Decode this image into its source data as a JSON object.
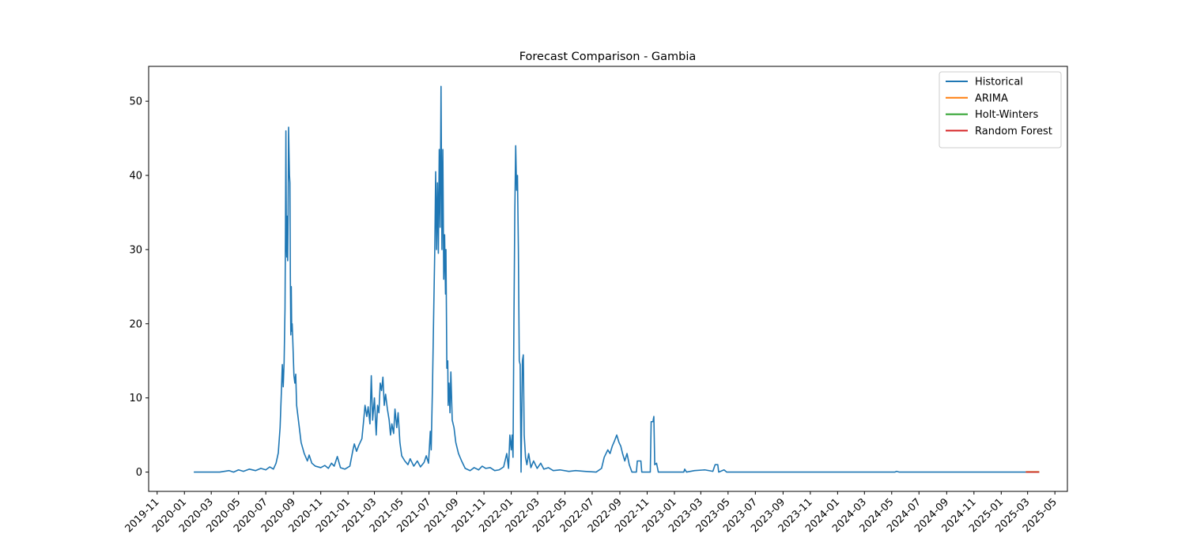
{
  "chart_data": {
    "type": "line",
    "title": "Forecast Comparison - Gambia",
    "xlabel": "",
    "ylabel": "",
    "xlim": [
      "2019-10-13",
      "2025-05-29"
    ],
    "ylim": [
      -2.6,
      54.7
    ],
    "y_ticks": [
      0,
      10,
      20,
      30,
      40,
      50
    ],
    "x_ticks": [
      "2019-11",
      "2020-01",
      "2020-03",
      "2020-05",
      "2020-07",
      "2020-09",
      "2020-11",
      "2021-01",
      "2021-03",
      "2021-05",
      "2021-07",
      "2021-09",
      "2021-11",
      "2022-01",
      "2022-03",
      "2022-05",
      "2022-07",
      "2022-09",
      "2022-11",
      "2023-01",
      "2023-03",
      "2023-05",
      "2023-07",
      "2023-09",
      "2023-11",
      "2024-01",
      "2024-03",
      "2024-05",
      "2024-07",
      "2024-09",
      "2024-11",
      "2025-01",
      "2025-03",
      "2025-05"
    ],
    "grid": false,
    "legend_position": "top-right",
    "series": [
      {
        "name": "Historical",
        "color": "#1f77b4",
        "points": [
          [
            "2020-01-22",
            0
          ],
          [
            "2020-03-20",
            0
          ],
          [
            "2020-04-10",
            0.2
          ],
          [
            "2020-04-20",
            0
          ],
          [
            "2020-05-01",
            0.3
          ],
          [
            "2020-05-12",
            0.1
          ],
          [
            "2020-05-25",
            0.4
          ],
          [
            "2020-06-08",
            0.2
          ],
          [
            "2020-06-20",
            0.5
          ],
          [
            "2020-07-01",
            0.3
          ],
          [
            "2020-07-10",
            0.7
          ],
          [
            "2020-07-18",
            0.4
          ],
          [
            "2020-07-24",
            1.2
          ],
          [
            "2020-07-29",
            2.6
          ],
          [
            "2020-08-02",
            6
          ],
          [
            "2020-08-05",
            11
          ],
          [
            "2020-08-07",
            14.5
          ],
          [
            "2020-08-09",
            11.5
          ],
          [
            "2020-08-11",
            14.8
          ],
          [
            "2020-08-13",
            22
          ],
          [
            "2020-08-14",
            32
          ],
          [
            "2020-08-15",
            46
          ],
          [
            "2020-08-16",
            31
          ],
          [
            "2020-08-17",
            29
          ],
          [
            "2020-08-18",
            34.5
          ],
          [
            "2020-08-19",
            28.5
          ],
          [
            "2020-08-20",
            35
          ],
          [
            "2020-08-21",
            46.5
          ],
          [
            "2020-08-22",
            43
          ],
          [
            "2020-08-23",
            40
          ],
          [
            "2020-08-24",
            39
          ],
          [
            "2020-08-25",
            26
          ],
          [
            "2020-08-26",
            18.5
          ],
          [
            "2020-08-27",
            25
          ],
          [
            "2020-08-28",
            19
          ],
          [
            "2020-08-29",
            20
          ],
          [
            "2020-08-30",
            18.5
          ],
          [
            "2020-09-02",
            13
          ],
          [
            "2020-09-04",
            12
          ],
          [
            "2020-09-06",
            13.2
          ],
          [
            "2020-09-08",
            9
          ],
          [
            "2020-09-12",
            7
          ],
          [
            "2020-09-18",
            4
          ],
          [
            "2020-09-25",
            2.5
          ],
          [
            "2020-10-02",
            1.5
          ],
          [
            "2020-10-06",
            2.3
          ],
          [
            "2020-10-12",
            1.2
          ],
          [
            "2020-10-20",
            0.8
          ],
          [
            "2020-11-01",
            0.6
          ],
          [
            "2020-11-10",
            0.9
          ],
          [
            "2020-11-18",
            0.5
          ],
          [
            "2020-11-25",
            1.2
          ],
          [
            "2020-12-01",
            0.8
          ],
          [
            "2020-12-08",
            2.1
          ],
          [
            "2020-12-15",
            0.6
          ],
          [
            "2020-12-25",
            0.4
          ],
          [
            "2021-01-05",
            0.8
          ],
          [
            "2021-01-12",
            3
          ],
          [
            "2021-01-15",
            3.8
          ],
          [
            "2021-01-20",
            2.8
          ],
          [
            "2021-01-25",
            3.6
          ],
          [
            "2021-02-01",
            4.5
          ],
          [
            "2021-02-05",
            7
          ],
          [
            "2021-02-08",
            9
          ],
          [
            "2021-02-12",
            7.5
          ],
          [
            "2021-02-15",
            8.8
          ],
          [
            "2021-02-19",
            6.5
          ],
          [
            "2021-02-22",
            13
          ],
          [
            "2021-02-25",
            7
          ],
          [
            "2021-03-01",
            10
          ],
          [
            "2021-03-05",
            5
          ],
          [
            "2021-03-08",
            9
          ],
          [
            "2021-03-11",
            8
          ],
          [
            "2021-03-14",
            12
          ],
          [
            "2021-03-17",
            11
          ],
          [
            "2021-03-20",
            12.8
          ],
          [
            "2021-03-23",
            9
          ],
          [
            "2021-03-26",
            10.5
          ],
          [
            "2021-03-30",
            8.5
          ],
          [
            "2021-04-03",
            7
          ],
          [
            "2021-04-06",
            5
          ],
          [
            "2021-04-09",
            6.5
          ],
          [
            "2021-04-13",
            5.2
          ],
          [
            "2021-04-16",
            8.5
          ],
          [
            "2021-04-20",
            6
          ],
          [
            "2021-04-23",
            8
          ],
          [
            "2021-04-27",
            4
          ],
          [
            "2021-05-01",
            2.2
          ],
          [
            "2021-05-08",
            1.5
          ],
          [
            "2021-05-15",
            1
          ],
          [
            "2021-05-20",
            1.8
          ],
          [
            "2021-05-28",
            0.8
          ],
          [
            "2021-06-05",
            1.5
          ],
          [
            "2021-06-12",
            0.7
          ],
          [
            "2021-06-20",
            1.3
          ],
          [
            "2021-06-25",
            2.2
          ],
          [
            "2021-06-30",
            1.2
          ],
          [
            "2021-07-04",
            5.5
          ],
          [
            "2021-07-06",
            3
          ],
          [
            "2021-07-09",
            12
          ],
          [
            "2021-07-12",
            23
          ],
          [
            "2021-07-14",
            30
          ],
          [
            "2021-07-16",
            40.5
          ],
          [
            "2021-07-18",
            30
          ],
          [
            "2021-07-20",
            39
          ],
          [
            "2021-07-22",
            29.5
          ],
          [
            "2021-07-24",
            43.5
          ],
          [
            "2021-07-26",
            33
          ],
          [
            "2021-07-28",
            52
          ],
          [
            "2021-07-30",
            30
          ],
          [
            "2021-08-01",
            43.5
          ],
          [
            "2021-08-03",
            26
          ],
          [
            "2021-08-05",
            32
          ],
          [
            "2021-08-07",
            24
          ],
          [
            "2021-08-08",
            30
          ],
          [
            "2021-08-10",
            14
          ],
          [
            "2021-08-12",
            15
          ],
          [
            "2021-08-13",
            9
          ],
          [
            "2021-08-15",
            12
          ],
          [
            "2021-08-17",
            8
          ],
          [
            "2021-08-19",
            13.5
          ],
          [
            "2021-08-22",
            7
          ],
          [
            "2021-08-26",
            6
          ],
          [
            "2021-08-30",
            4
          ],
          [
            "2021-09-05",
            2.5
          ],
          [
            "2021-09-12",
            1.5
          ],
          [
            "2021-09-20",
            0.5
          ],
          [
            "2021-10-01",
            0.2
          ],
          [
            "2021-10-10",
            0.6
          ],
          [
            "2021-10-20",
            0.3
          ],
          [
            "2021-10-28",
            0.8
          ],
          [
            "2021-11-05",
            0.5
          ],
          [
            "2021-11-15",
            0.6
          ],
          [
            "2021-11-25",
            0.2
          ],
          [
            "2021-12-05",
            0.3
          ],
          [
            "2021-12-15",
            0.7
          ],
          [
            "2021-12-22",
            2.5
          ],
          [
            "2021-12-26",
            0.5
          ],
          [
            "2021-12-29",
            5
          ],
          [
            "2022-01-01",
            3
          ],
          [
            "2022-01-03",
            5
          ],
          [
            "2022-01-05",
            2
          ],
          [
            "2022-01-07",
            20
          ],
          [
            "2022-01-09",
            35
          ],
          [
            "2022-01-11",
            44
          ],
          [
            "2022-01-13",
            38
          ],
          [
            "2022-01-15",
            40
          ],
          [
            "2022-01-17",
            30
          ],
          [
            "2022-01-19",
            15
          ],
          [
            "2022-01-21",
            14.5
          ],
          [
            "2022-01-23",
            0
          ],
          [
            "2022-01-26",
            15
          ],
          [
            "2022-01-28",
            15.8
          ],
          [
            "2022-01-30",
            5
          ],
          [
            "2022-02-02",
            2
          ],
          [
            "2022-02-05",
            1
          ],
          [
            "2022-02-09",
            2.5
          ],
          [
            "2022-02-14",
            0.6
          ],
          [
            "2022-02-20",
            1.5
          ],
          [
            "2022-02-28",
            0.5
          ],
          [
            "2022-03-08",
            1.2
          ],
          [
            "2022-03-15",
            0.4
          ],
          [
            "2022-03-25",
            0.6
          ],
          [
            "2022-04-05",
            0.2
          ],
          [
            "2022-04-20",
            0.3
          ],
          [
            "2022-05-10",
            0.1
          ],
          [
            "2022-05-25",
            0.2
          ],
          [
            "2022-06-15",
            0.1
          ],
          [
            "2022-07-10",
            0
          ],
          [
            "2022-07-22",
            0.5
          ],
          [
            "2022-07-28",
            2
          ],
          [
            "2022-08-05",
            3
          ],
          [
            "2022-08-10",
            2.5
          ],
          [
            "2022-08-15",
            3.5
          ],
          [
            "2022-08-20",
            4.2
          ],
          [
            "2022-08-25",
            5
          ],
          [
            "2022-08-30",
            4
          ],
          [
            "2022-09-03",
            3.5
          ],
          [
            "2022-09-07",
            2.5
          ],
          [
            "2022-09-12",
            1.5
          ],
          [
            "2022-09-17",
            2.5
          ],
          [
            "2022-09-22",
            1
          ],
          [
            "2022-09-28",
            0
          ],
          [
            "2022-10-08",
            0
          ],
          [
            "2022-10-10",
            1.5
          ],
          [
            "2022-10-18",
            1.5
          ],
          [
            "2022-10-20",
            0
          ],
          [
            "2022-11-08",
            0
          ],
          [
            "2022-11-10",
            6.8
          ],
          [
            "2022-11-14",
            6.8
          ],
          [
            "2022-11-16",
            7.5
          ],
          [
            "2022-11-18",
            1
          ],
          [
            "2022-11-22",
            1.2
          ],
          [
            "2022-11-26",
            0
          ],
          [
            "2023-01-22",
            0
          ],
          [
            "2023-01-24",
            0.4
          ],
          [
            "2023-01-28",
            0
          ],
          [
            "2023-02-15",
            0.2
          ],
          [
            "2023-03-10",
            0.3
          ],
          [
            "2023-03-28",
            0.1
          ],
          [
            "2023-04-02",
            1
          ],
          [
            "2023-04-08",
            1
          ],
          [
            "2023-04-10",
            0
          ],
          [
            "2023-04-22",
            0.3
          ],
          [
            "2023-04-28",
            0
          ],
          [
            "2024-05-08",
            0
          ],
          [
            "2024-05-12",
            0.1
          ],
          [
            "2024-05-18",
            0
          ],
          [
            "2025-02-25",
            0
          ]
        ]
      },
      {
        "name": "ARIMA",
        "color": "#ff7f0e",
        "points": [
          [
            "2025-02-25",
            0.05
          ],
          [
            "2025-03-27",
            0.05
          ]
        ]
      },
      {
        "name": "Holt-Winters",
        "color": "#2ca02c",
        "points": [
          [
            "2025-02-25",
            0
          ],
          [
            "2025-03-27",
            0
          ]
        ]
      },
      {
        "name": "Random Forest",
        "color": "#d62728",
        "points": [
          [
            "2025-02-25",
            0
          ],
          [
            "2025-03-27",
            0
          ]
        ]
      }
    ]
  }
}
